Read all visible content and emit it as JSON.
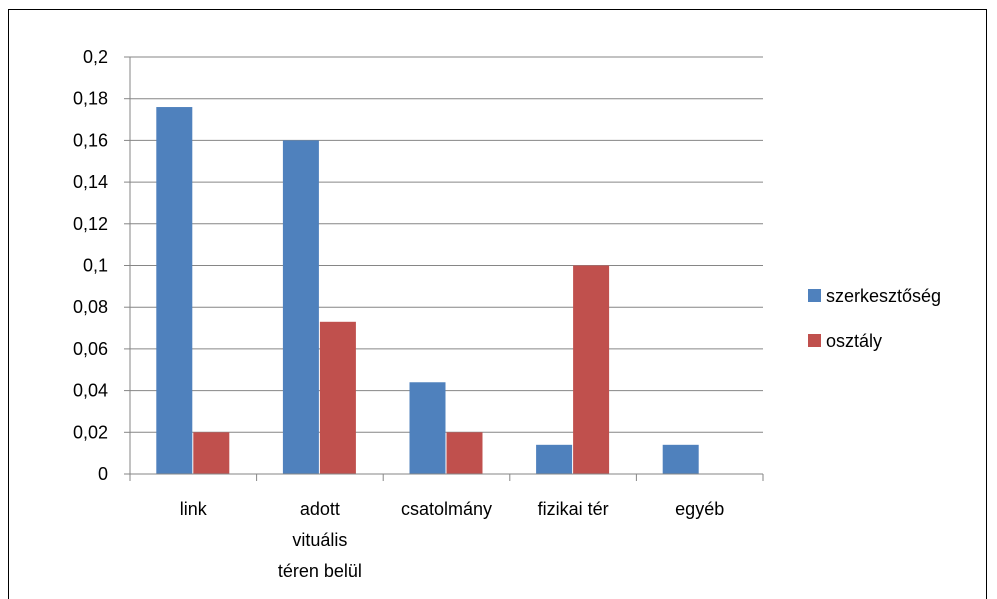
{
  "chart_data": {
    "type": "bar",
    "categories": [
      [
        "link"
      ],
      [
        "adott",
        "vituális",
        "téren belül"
      ],
      [
        "csatolmány"
      ],
      [
        "fizikai tér"
      ],
      [
        "egyéb"
      ]
    ],
    "series": [
      {
        "name": "szerkesztőség",
        "color": "#4F81BD",
        "values": [
          0.176,
          0.16,
          0.044,
          0.014,
          0.014
        ]
      },
      {
        "name": "osztály",
        "color": "#C0504D",
        "values": [
          0.02,
          0.073,
          0.02,
          0.1,
          0
        ]
      }
    ],
    "ylim": [
      0,
      0.2
    ],
    "yticks": [
      "0",
      "0,02",
      "0,04",
      "0,06",
      "0,08",
      "0,1",
      "0,12",
      "0,14",
      "0,16",
      "0,18",
      "0,2"
    ],
    "title": "",
    "xlabel": "",
    "ylabel": "",
    "grid": true,
    "legend": "right"
  }
}
